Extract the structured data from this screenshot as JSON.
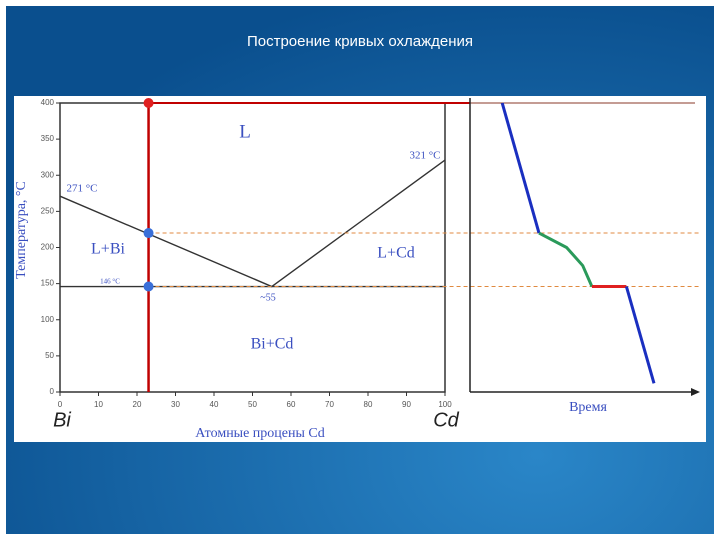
{
  "title": "Построение кривых охлаждения",
  "chart_data": [
    {
      "type": "phase",
      "ylabel": "Температура, °C",
      "xlabel": "Атомные процены Cd",
      "x_end_labels": [
        "Bi",
        "Cd"
      ],
      "xlim": [
        0,
        100
      ],
      "ylim": [
        0,
        400
      ],
      "xticks": [
        0,
        10,
        20,
        30,
        40,
        50,
        60,
        70,
        80,
        90,
        100
      ],
      "yticks": [
        0,
        50,
        100,
        150,
        200,
        250,
        300,
        350,
        400
      ],
      "series": [
        {
          "color": "#333333",
          "x": [
            0,
            55,
            100
          ],
          "values": [
            271,
            146,
            321
          ]
        },
        {
          "color": "#333333",
          "x": [
            0,
            100
          ],
          "values": [
            146,
            146
          ]
        }
      ],
      "composition": {
        "x": 23,
        "color": "#c00000"
      },
      "points": [
        {
          "x": 23,
          "y": 400,
          "color": "#e02020"
        },
        {
          "x": 23,
          "y": 220,
          "color": "#3a6fd8"
        },
        {
          "x": 23,
          "y": 146,
          "color": "#3a6fd8"
        }
      ],
      "annotations": [
        "L",
        "321 °C",
        "271 °C",
        "L+Bi",
        "L+Cd",
        "146 °C",
        "~55",
        "Bi+Cd"
      ]
    },
    {
      "type": "line",
      "xlabel": "Время",
      "xlim": [
        0,
        100
      ],
      "ylim": [
        0,
        400
      ],
      "series": [
        {
          "color": "#1a2fc0",
          "x": [
            14,
            30
          ],
          "values": [
            400,
            220
          ]
        },
        {
          "color": "#2a9a5a",
          "x": [
            30,
            42,
            49,
            53
          ],
          "values": [
            220,
            200,
            175,
            146
          ]
        },
        {
          "color": "#e02020",
          "x": [
            53,
            68
          ],
          "values": [
            146,
            146
          ]
        },
        {
          "color": "#1a2fc0",
          "x": [
            68,
            80
          ],
          "values": [
            146,
            12
          ]
        }
      ]
    }
  ]
}
